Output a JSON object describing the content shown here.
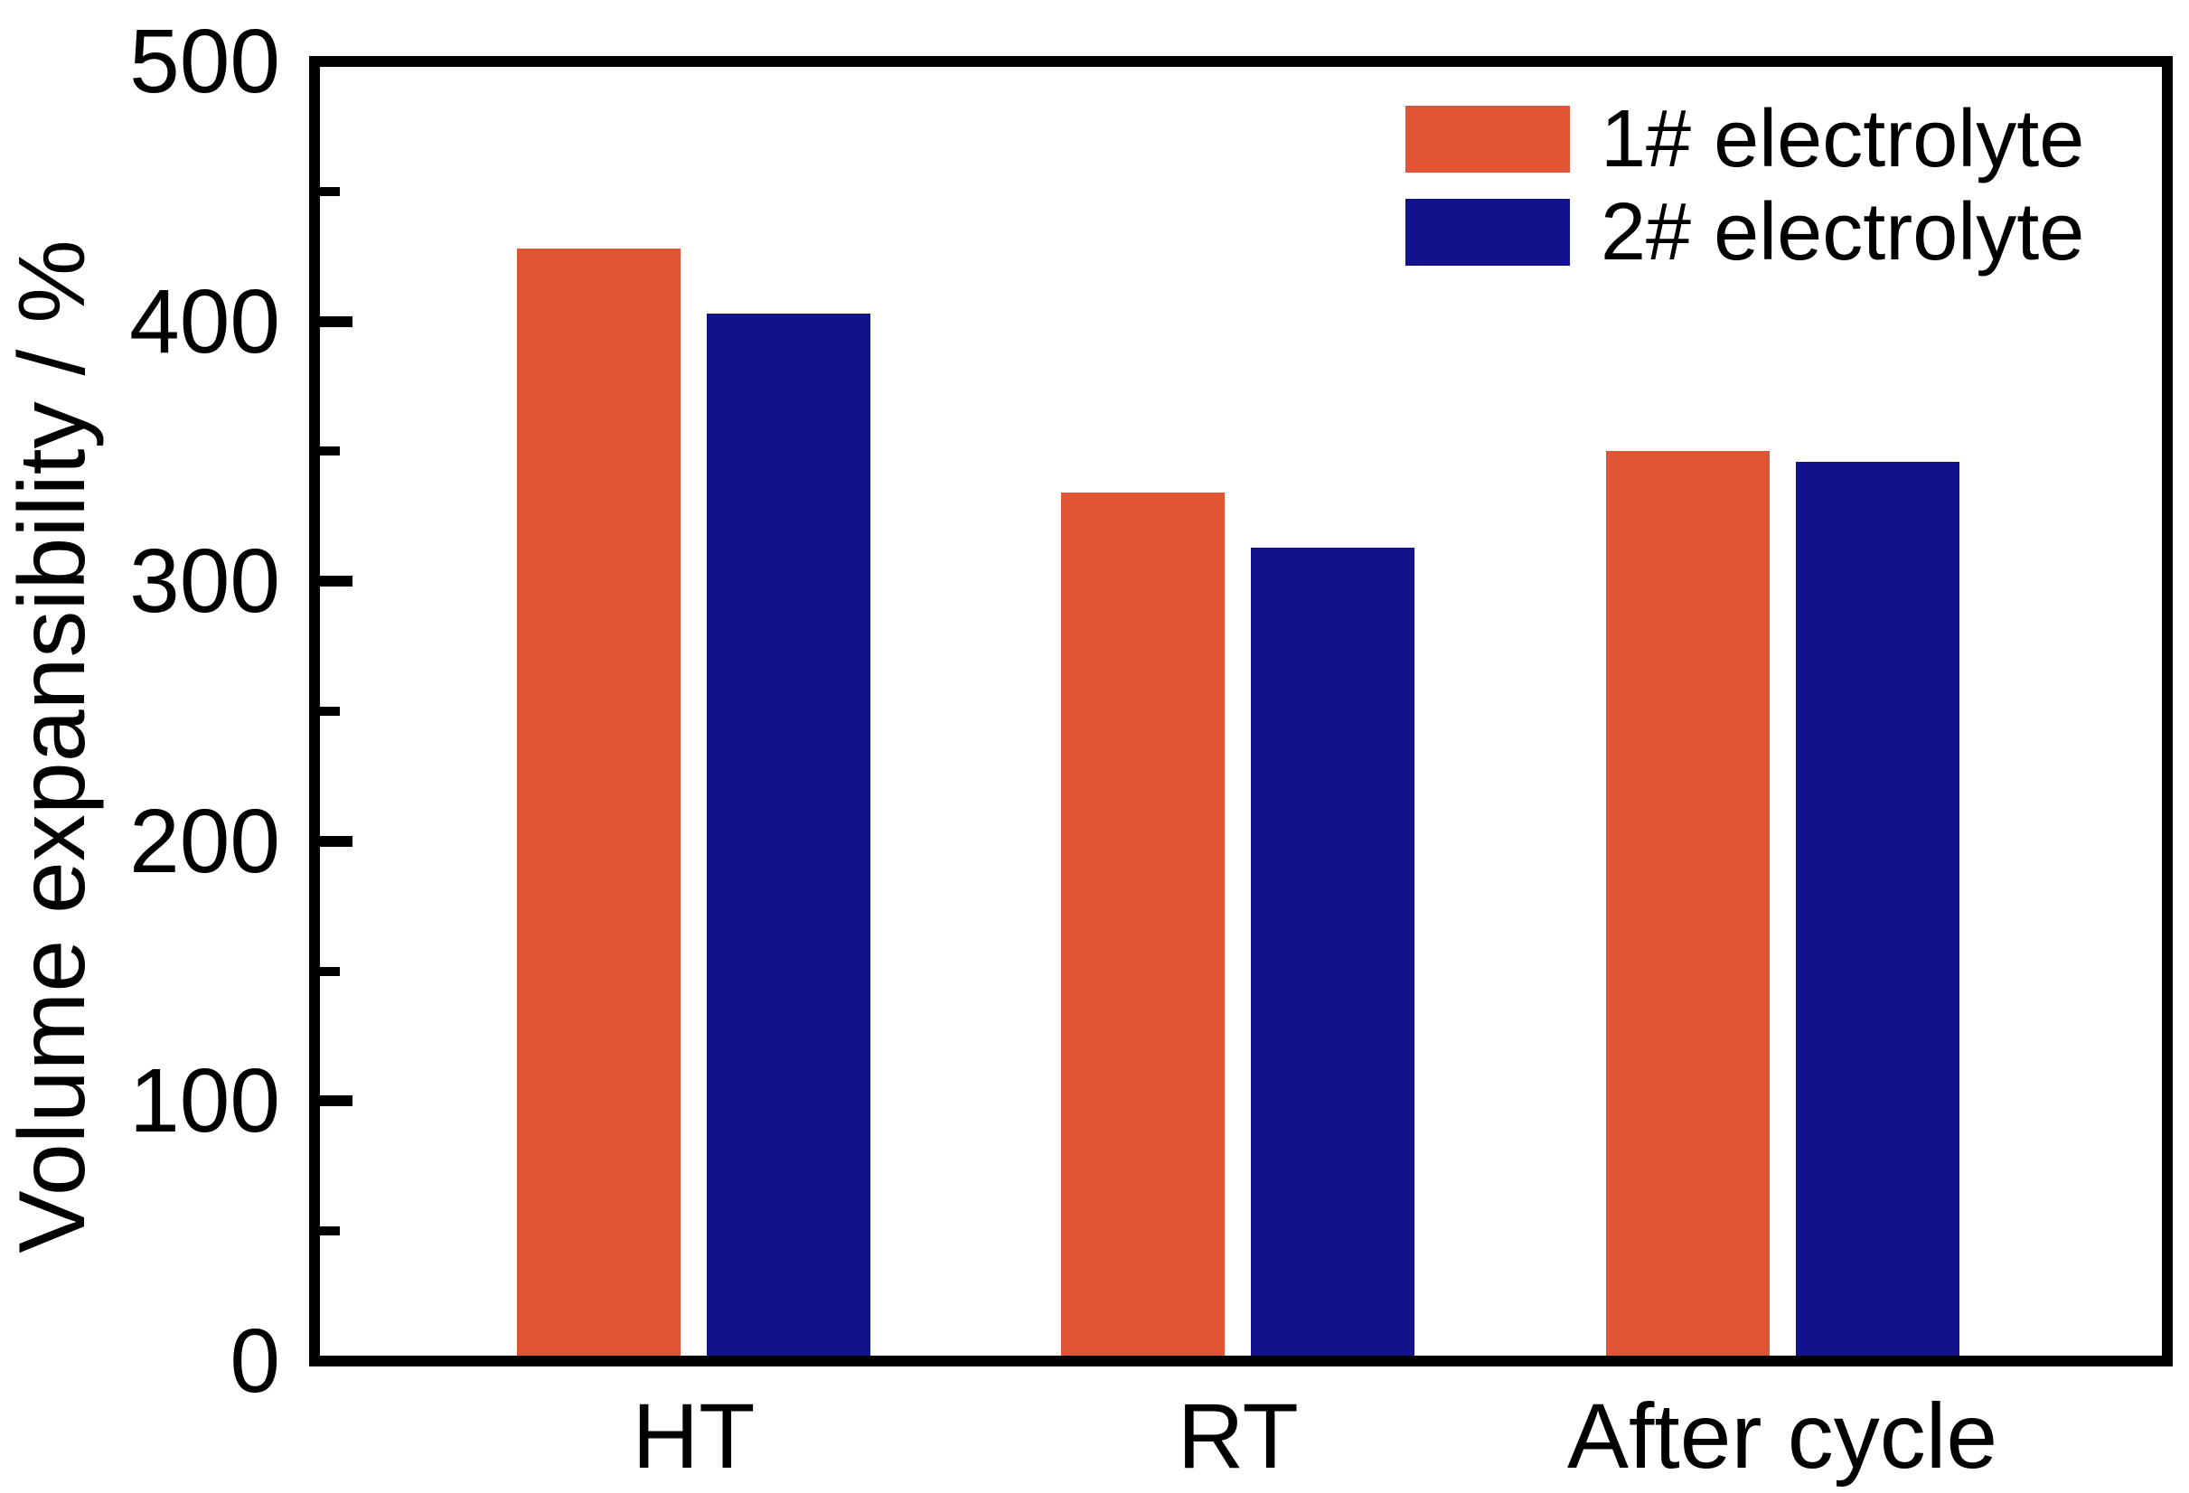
{
  "chart_data": {
    "type": "bar",
    "title": "",
    "xlabel": "",
    "ylabel": "Volume expansibility / %",
    "ylim": [
      0,
      500
    ],
    "y_major_ticks": [
      0,
      100,
      200,
      300,
      400,
      500
    ],
    "y_minor_ticks": [
      50,
      150,
      250,
      350,
      450
    ],
    "categories": [
      "HT",
      "RT",
      "After cycle"
    ],
    "series": [
      {
        "name": "1# electrolyte",
        "color": "#E15435",
        "values": [
          428,
          334,
          350
        ]
      },
      {
        "name": "2# electrolyte",
        "color": "#12128C",
        "values": [
          403,
          313,
          346
        ]
      }
    ],
    "legend_position": "top-right",
    "grid": false,
    "axis_color": "#000000",
    "background": "#FFFFFF"
  }
}
